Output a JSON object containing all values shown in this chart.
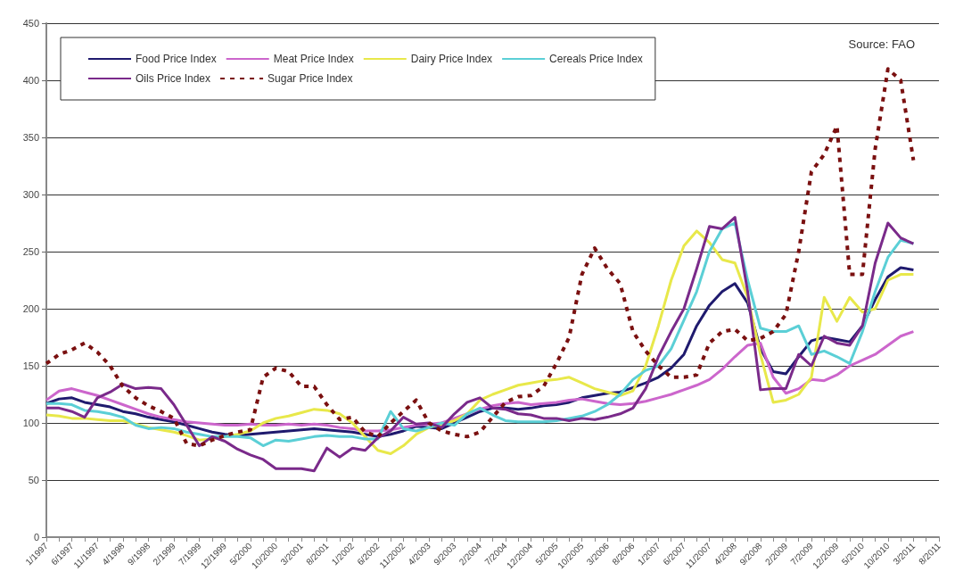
{
  "chart_data": {
    "type": "line",
    "categories": [
      "1/1997",
      null,
      "6/1997",
      null,
      "11/1997",
      null,
      "4/1998",
      null,
      "9/1998",
      null,
      "2/1999",
      null,
      "7/1999",
      null,
      "12/1999",
      null,
      "5/2000",
      null,
      "10/2000",
      null,
      "3/2001",
      null,
      "8/2001",
      null,
      "1/2002",
      null,
      "6/2002",
      null,
      "11/2002",
      null,
      "4/2003",
      null,
      "9/2003",
      null,
      "2/2004",
      null,
      "7/2004",
      null,
      "12/2004",
      null,
      "5/2005",
      null,
      "10/2005",
      null,
      "3/2006",
      null,
      "8/2006",
      null,
      "1/2007",
      null,
      "6/2007",
      null,
      "11/2007",
      null,
      "4/2008",
      null,
      "9/2008",
      null,
      "2/2009",
      null,
      "7/2009",
      null,
      "12/2009",
      null,
      "5/2010",
      null,
      "10/2010",
      null,
      "3/2011",
      null,
      "8/2011"
    ],
    "series": [
      {
        "name": "Food Price Index",
        "color": "#1f1a6e",
        "values": [
          117,
          121,
          122,
          118,
          116,
          114,
          110,
          108,
          105,
          103,
          101,
          98,
          95,
          92,
          90,
          89,
          90,
          91,
          92,
          93,
          94,
          95,
          94,
          93,
          92,
          90,
          88,
          90,
          93,
          97,
          96,
          95,
          100,
          105,
          110,
          113,
          113,
          112,
          113,
          115,
          116,
          118,
          122,
          124,
          126,
          127,
          131,
          135,
          140,
          148,
          160,
          185,
          203,
          215,
          222,
          205,
          165,
          145,
          143,
          158,
          172,
          175,
          173,
          171,
          185,
          208,
          228,
          236,
          234,
          null,
          null
        ]
      },
      {
        "name": "Meat Price Index",
        "color": "#cc66cc",
        "values": [
          120,
          128,
          130,
          127,
          124,
          120,
          116,
          112,
          108,
          105,
          103,
          101,
          100,
          99,
          98,
          98,
          99,
          98,
          98,
          99,
          98,
          99,
          98,
          96,
          95,
          93,
          93,
          94,
          96,
          98,
          99,
          100,
          104,
          108,
          112,
          115,
          117,
          118,
          116,
          117,
          118,
          120,
          121,
          119,
          117,
          116,
          117,
          119,
          122,
          125,
          129,
          133,
          138,
          147,
          158,
          168,
          170,
          140,
          126,
          130,
          138,
          137,
          142,
          150,
          155,
          160,
          168,
          176,
          180,
          null,
          null
        ]
      },
      {
        "name": "Dairy Price Index",
        "color": "#e8e84a",
        "values": [
          107,
          106,
          104,
          104,
          103,
          102,
          102,
          99,
          96,
          94,
          92,
          89,
          85,
          86,
          88,
          90,
          93,
          100,
          104,
          106,
          109,
          112,
          111,
          108,
          100,
          88,
          76,
          73,
          80,
          90,
          96,
          99,
          102,
          108,
          120,
          125,
          129,
          133,
          135,
          137,
          138,
          140,
          135,
          130,
          127,
          124,
          128,
          150,
          185,
          225,
          255,
          268,
          258,
          243,
          240,
          210,
          160,
          118,
          120,
          125,
          140,
          210,
          189,
          210,
          197,
          200,
          225,
          230,
          230,
          null,
          null
        ]
      },
      {
        "name": "Cereals Price Index",
        "color": "#5bcfd6",
        "values": [
          117,
          117,
          116,
          111,
          110,
          108,
          105,
          98,
          95,
          96,
          95,
          92,
          90,
          88,
          88,
          88,
          87,
          80,
          85,
          84,
          86,
          88,
          89,
          88,
          88,
          86,
          86,
          110,
          95,
          93,
          96,
          100,
          98,
          108,
          113,
          107,
          102,
          101,
          101,
          101,
          102,
          104,
          106,
          110,
          116,
          125,
          138,
          146,
          150,
          165,
          190,
          215,
          250,
          270,
          275,
          225,
          183,
          180,
          180,
          185,
          160,
          163,
          158,
          152,
          180,
          215,
          245,
          260,
          257,
          null,
          null
        ]
      },
      {
        "name": "Oils Price Index",
        "color": "#7a2a8a",
        "values": [
          113,
          113,
          110,
          105,
          122,
          127,
          134,
          130,
          131,
          130,
          116,
          98,
          80,
          88,
          84,
          77,
          72,
          68,
          60,
          60,
          60,
          58,
          78,
          70,
          78,
          76,
          87,
          93,
          105,
          99,
          100,
          96,
          108,
          118,
          122,
          113,
          112,
          108,
          107,
          104,
          104,
          102,
          104,
          103,
          105,
          108,
          113,
          130,
          158,
          180,
          200,
          235,
          272,
          270,
          280,
          215,
          129,
          130,
          130,
          160,
          150,
          176,
          170,
          168,
          185,
          240,
          275,
          262,
          257,
          null,
          null
        ]
      },
      {
        "name": "Sugar Price Index",
        "color": "#7a1010",
        "line_style": "dashed",
        "values": [
          152,
          160,
          164,
          170,
          162,
          150,
          132,
          122,
          115,
          110,
          104,
          82,
          80,
          85,
          89,
          92,
          94,
          140,
          148,
          145,
          132,
          132,
          116,
          103,
          105,
          92,
          88,
          100,
          110,
          120,
          100,
          93,
          90,
          88,
          92,
          105,
          118,
          123,
          124,
          132,
          152,
          175,
          230,
          253,
          235,
          222,
          180,
          163,
          150,
          140,
          140,
          142,
          170,
          180,
          182,
          172,
          174,
          180,
          195,
          250,
          320,
          335,
          360,
          230,
          230,
          340,
          410,
          400,
          330,
          null,
          null
        ]
      }
    ],
    "ylim": [
      0,
      450
    ],
    "yticks": [
      0,
      50,
      100,
      150,
      200,
      250,
      300,
      350,
      400,
      450
    ],
    "grid": "y",
    "legend": "top left",
    "marker": "none",
    "line_style": "solid",
    "annotations": [
      "Source: FAO"
    ]
  }
}
